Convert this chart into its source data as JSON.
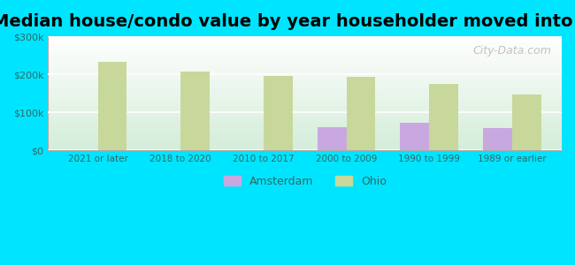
{
  "title": "Median house/condo value by year householder moved into unit",
  "categories": [
    "2021 or later",
    "2018 to 2020",
    "2010 to 2017",
    "2000 to 2009",
    "1990 to 1999",
    "1989 or earlier"
  ],
  "amsterdam_values": [
    null,
    null,
    null,
    62000,
    72000,
    58000
  ],
  "ohio_values": [
    232000,
    208000,
    196000,
    193000,
    175000,
    148000
  ],
  "amsterdam_color": "#c9a8e0",
  "ohio_color": "#c8d89a",
  "background_outer": "#00e5ff",
  "background_inner_top": "#ffffff",
  "background_inner_bottom": "#d4edda",
  "ylim": [
    0,
    300000
  ],
  "yticks": [
    0,
    100000,
    200000,
    300000
  ],
  "ytick_labels": [
    "$0",
    "$100k",
    "$200k",
    "$300k"
  ],
  "title_fontsize": 14,
  "bar_width": 0.35,
  "watermark": "City-Data.com"
}
